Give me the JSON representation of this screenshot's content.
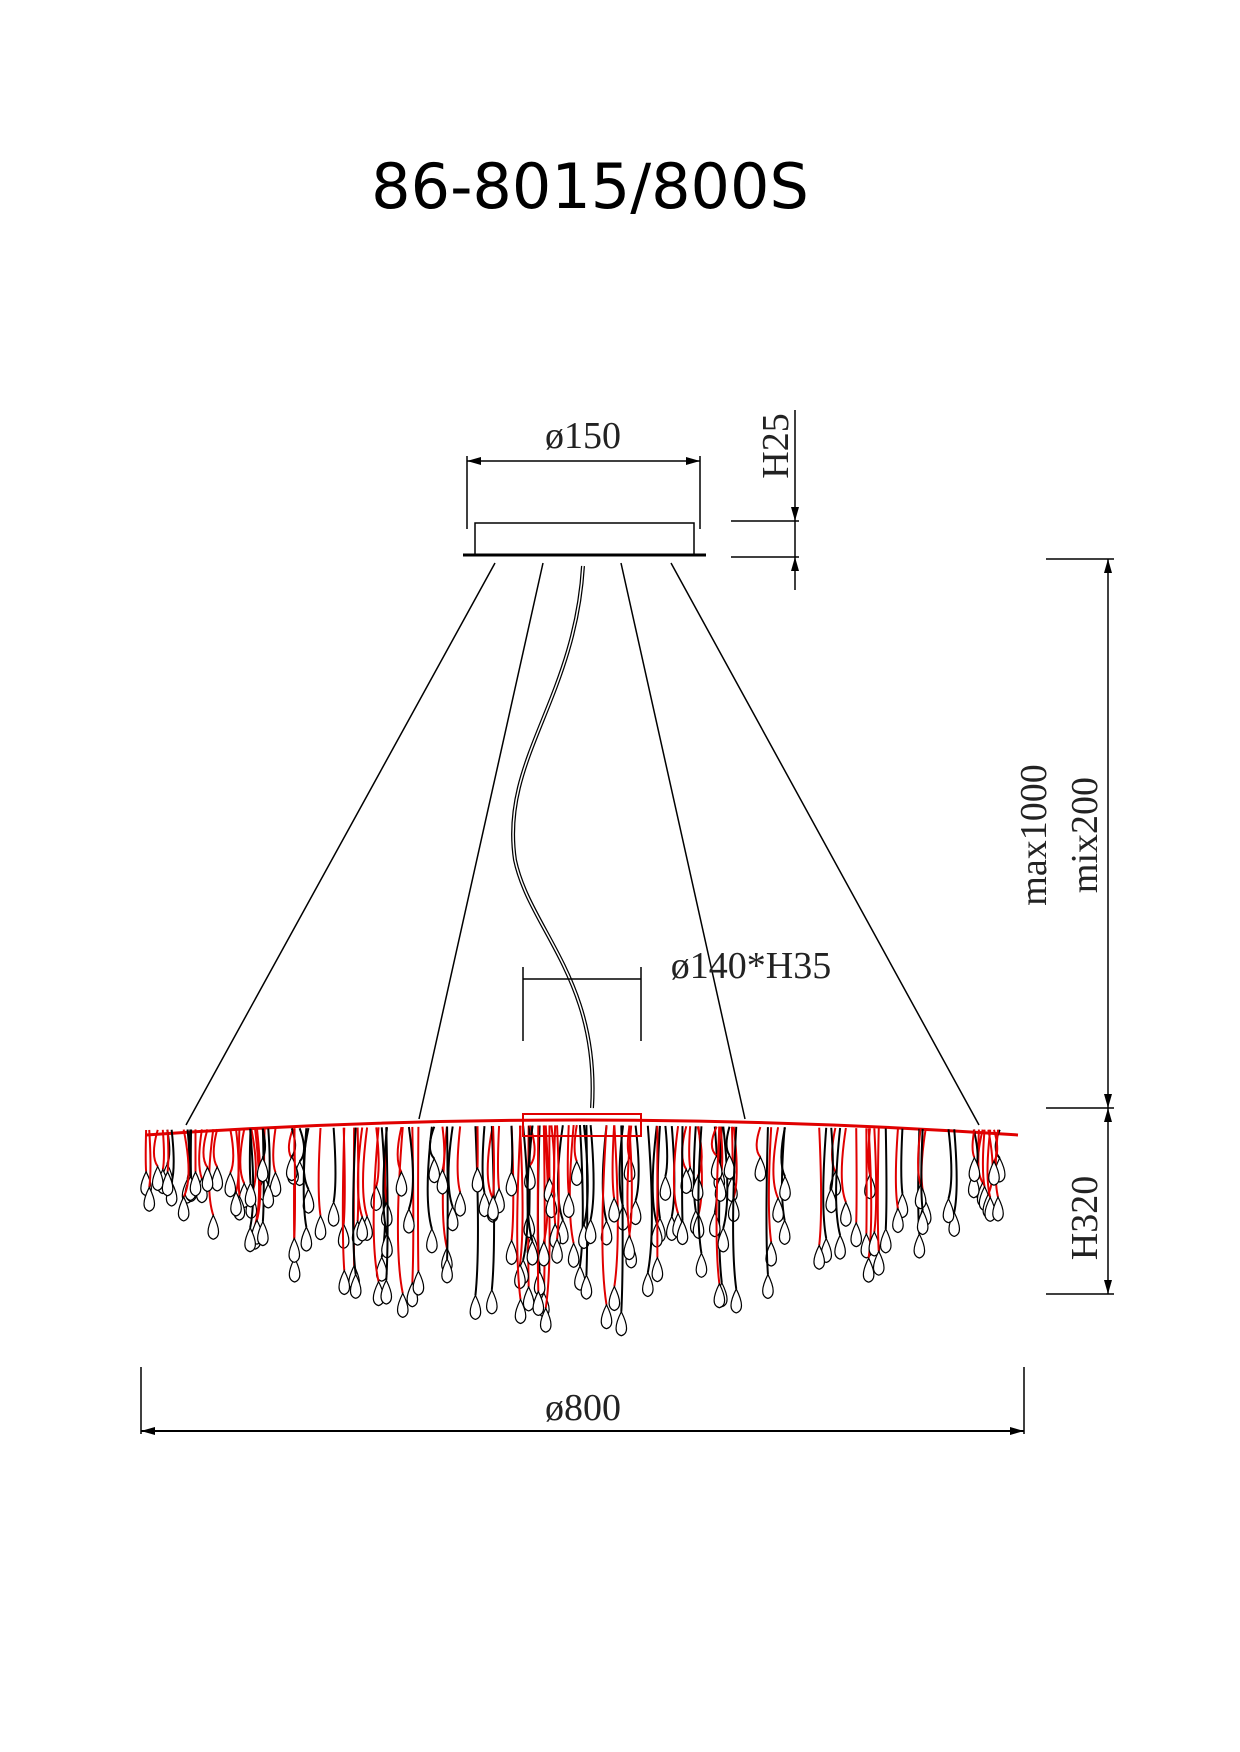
{
  "title": "86-8015/800S",
  "dimensions": {
    "canopy_diameter": "ø150",
    "canopy_height": "H25",
    "suspension_max": "max1000",
    "suspension_min": "mix200",
    "cup": "ø140*H35",
    "body_height": "H320",
    "body_diameter": "ø800"
  },
  "colors": {
    "line": "#000000",
    "frame": "#e00000"
  }
}
